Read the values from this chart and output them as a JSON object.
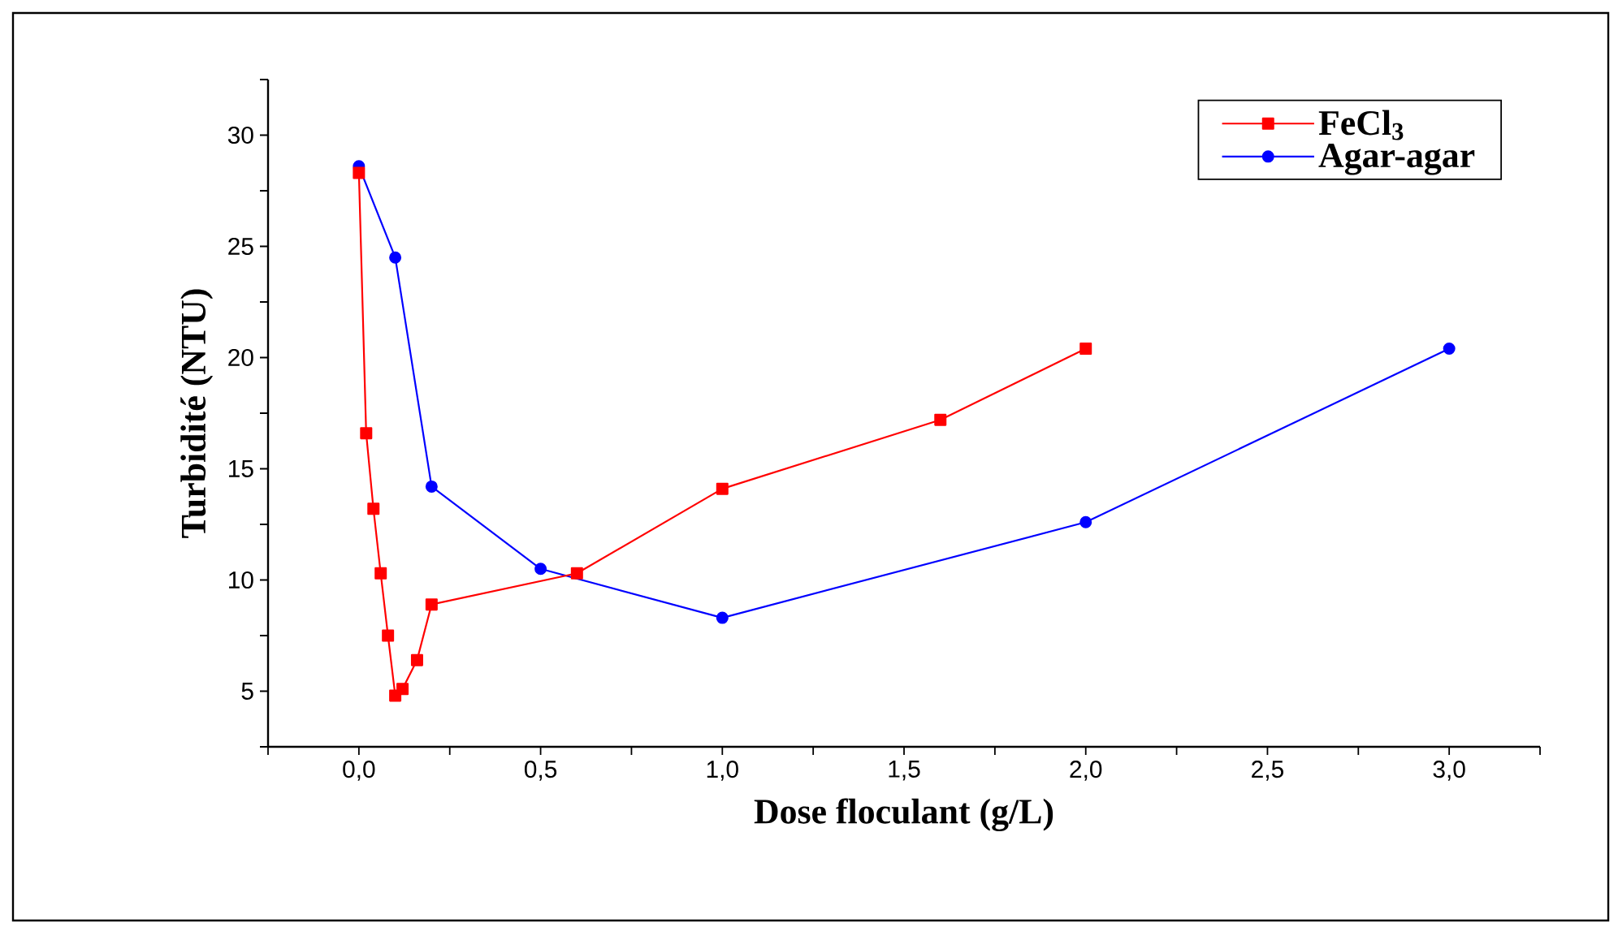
{
  "chart_data": {
    "type": "line",
    "xlabel": "Dose floculant (g/L)",
    "ylabel": "Turbidité (NTU)",
    "xlim": [
      -0.25,
      3.25
    ],
    "ylim": [
      2.5,
      32.5
    ],
    "xticks": [
      {
        "value": -0.25,
        "label": null
      },
      {
        "value": 0,
        "label": "0,0"
      },
      {
        "value": 0.25,
        "label": null
      },
      {
        "value": 0.5,
        "label": "0,5"
      },
      {
        "value": 0.75,
        "label": null
      },
      {
        "value": 1,
        "label": "1,0"
      },
      {
        "value": 1.25,
        "label": null
      },
      {
        "value": 1.5,
        "label": "1,5"
      },
      {
        "value": 1.75,
        "label": null
      },
      {
        "value": 2,
        "label": "2,0"
      },
      {
        "value": 2.25,
        "label": null
      },
      {
        "value": 2.5,
        "label": "2,5"
      },
      {
        "value": 2.75,
        "label": null
      },
      {
        "value": 3,
        "label": "3,0"
      },
      {
        "value": 3.25,
        "label": null
      }
    ],
    "yticks": [
      {
        "value": 2.5,
        "label": null
      },
      5,
      {
        "value": 7.5,
        "label": null
      },
      10,
      {
        "value": 12.5,
        "label": null
      },
      15,
      {
        "value": 17.5,
        "label": null
      },
      20,
      {
        "value": 22.5,
        "label": null
      },
      25,
      {
        "value": 27.5,
        "label": null
      },
      30,
      {
        "value": 32.5,
        "label": null
      }
    ],
    "legend": "top right",
    "grid": false,
    "series": [
      {
        "name": "FeCl$_{3}$",
        "color": "#ff0000",
        "marker": "square",
        "x": [
          0,
          0.02,
          0.04,
          0.06,
          0.08,
          0.1,
          0.12,
          0.16,
          0.2,
          0.6,
          1.0,
          1.6,
          2.0
        ],
        "values": [
          28.3,
          16.6,
          13.2,
          10.3,
          7.5,
          4.8,
          5.1,
          6.4,
          8.9,
          10.3,
          14.1,
          17.2,
          20.4
        ]
      },
      {
        "name": "Agar-agar",
        "color": "#0000ff",
        "marker": "circle",
        "x": [
          0,
          0.1,
          0.2,
          0.5,
          1.0,
          2.0,
          3.0
        ],
        "values": [
          28.6,
          24.5,
          14.2,
          10.5,
          8.3,
          12.6,
          20.4
        ]
      }
    ]
  }
}
